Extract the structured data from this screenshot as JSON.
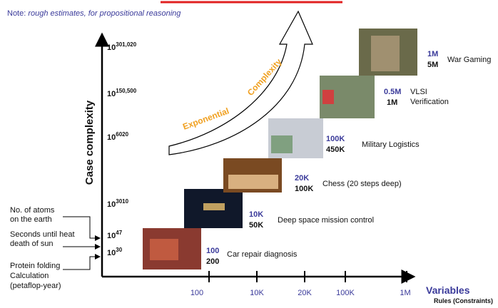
{
  "note": {
    "prefix": "Note:",
    "text": "rough estimates, for propositional reasoning"
  },
  "y_axis": {
    "label": "Case complexity",
    "ticks": [
      {
        "base": "10",
        "exp": "301,020"
      },
      {
        "base": "10",
        "exp": "150,500"
      },
      {
        "base": "10",
        "exp": "6020"
      },
      {
        "base": "10",
        "exp": "3010"
      },
      {
        "base": "10",
        "exp": "47"
      },
      {
        "base": "10",
        "exp": "30"
      }
    ]
  },
  "annotations": [
    [
      "No. of atoms",
      "on the earth"
    ],
    [
      "Seconds until heat",
      "death of sun"
    ],
    [
      "Protein folding",
      "Calculation",
      "(petaflop-year)"
    ]
  ],
  "arrow": {
    "left": "Exponential",
    "right": "Complexity"
  },
  "x_axis": {
    "ticks": [
      "100",
      "10K",
      "20K",
      "100K",
      "1M"
    ],
    "label": "Variables",
    "sublabel": "Rules (Constraints)"
  },
  "items": [
    {
      "variables": "100",
      "rules": "200",
      "label": "Car repair diagnosis"
    },
    {
      "variables": "10K",
      "rules": "50K",
      "label": "Deep space mission control"
    },
    {
      "variables": "20K",
      "rules": "100K",
      "label": "Chess (20 steps deep)"
    },
    {
      "variables": "100K",
      "rules": "450K",
      "label": "Military Logistics"
    },
    {
      "variables": "0.5M",
      "rules": "1M",
      "label": [
        "VLSI",
        "Verification"
      ]
    },
    {
      "variables": "1M",
      "rules": "5M",
      "label": "War Gaming"
    }
  ]
}
